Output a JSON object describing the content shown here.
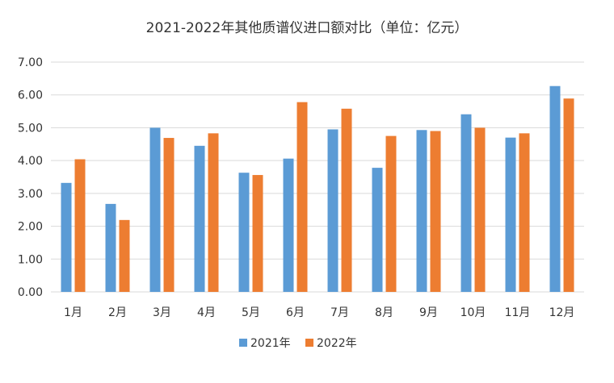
{
  "chart_data": {
    "type": "bar",
    "title": "2021-2022年其他质谱仪进口额对比（单位：亿元）",
    "categories": [
      "1月",
      "2月",
      "3月",
      "4月",
      "5月",
      "6月",
      "7月",
      "8月",
      "9月",
      "10月",
      "11月",
      "12月"
    ],
    "series": [
      {
        "name": "2021年",
        "color": "#5b9bd5",
        "values": [
          3.32,
          2.68,
          5.0,
          4.45,
          3.63,
          4.06,
          4.95,
          3.78,
          4.93,
          5.41,
          4.7,
          6.27
        ]
      },
      {
        "name": "2022年",
        "color": "#ed7d31",
        "values": [
          4.04,
          2.19,
          4.69,
          4.83,
          3.56,
          5.78,
          5.58,
          4.75,
          4.9,
          5.0,
          4.83,
          5.89
        ]
      }
    ],
    "ylim": [
      0,
      7
    ],
    "yticks": [
      "0.00",
      "1.00",
      "2.00",
      "3.00",
      "4.00",
      "5.00",
      "6.00",
      "7.00"
    ],
    "grid": true,
    "legend_position": "bottom"
  }
}
